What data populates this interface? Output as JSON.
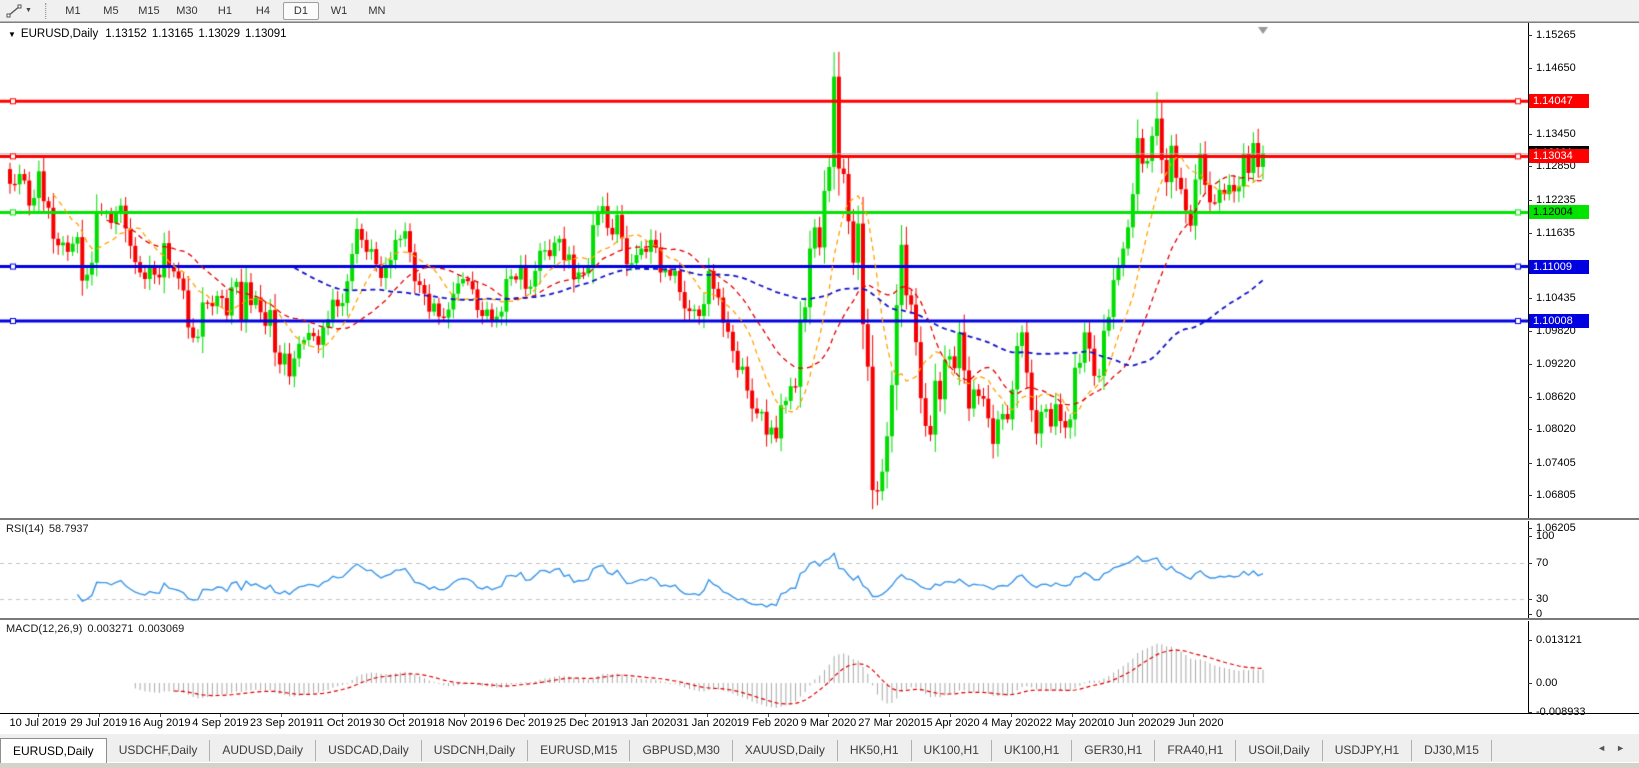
{
  "toolbar": {
    "timeframes": [
      "M1",
      "M5",
      "M15",
      "M30",
      "H1",
      "H4",
      "D1",
      "W1",
      "MN"
    ],
    "active_timeframe": "D1"
  },
  "icons": {
    "collapse": "▼",
    "tab_left": "◄",
    "tab_right": "►"
  },
  "chart_header": {
    "symbol": "EURUSD,Daily",
    "open": "1.13152",
    "high": "1.13165",
    "low": "1.13029",
    "close": "1.13091"
  },
  "price_axis": {
    "ticks": [
      "1.15265",
      "1.14650",
      "1.13450",
      "1.12850",
      "1.12235",
      "1.11635",
      "1.10435",
      "1.09820",
      "1.09220",
      "1.08620",
      "1.08020",
      "1.07405",
      "1.06805",
      "1.06205"
    ]
  },
  "rsi": {
    "label": "RSI(14)",
    "value": "58.7937",
    "period": 14,
    "color": "#3b96e8",
    "axis": [
      {
        "text": "100",
        "value": 100
      },
      {
        "text": "70",
        "value": 70
      },
      {
        "text": "30",
        "value": 30
      },
      {
        "text": "0",
        "value": 0
      }
    ],
    "levels": [
      70,
      30
    ]
  },
  "macd": {
    "label": "MACD(12,26,9)",
    "value_main": "0.003271",
    "value_signal": "0.003069",
    "fast": 12,
    "slow": 26,
    "signal": 9,
    "histogram_color": "#a9a9a9",
    "signal_color": "#e00000",
    "axis": [
      {
        "text": "0.013121",
        "value": 0.013121
      },
      {
        "text": "0.00",
        "value": 0
      },
      {
        "text": "-0.008933",
        "value": -0.008933
      }
    ]
  },
  "time_axis": {
    "labels": [
      "10 Jul 2019",
      "29 Jul 2019",
      "16 Aug 2019",
      "4 Sep 2019",
      "23 Sep 2019",
      "11 Oct 2019",
      "30 Oct 2019",
      "18 Nov 2019",
      "6 Dec 2019",
      "25 Dec 2019",
      "13 Jan 2020",
      "31 Jan 2020",
      "19 Feb 2020",
      "9 Mar 2020",
      "27 Mar 2020",
      "15 Apr 2020",
      "4 May 2020",
      "22 May 2020",
      "10 Jun 2020",
      "29 Jun 2020"
    ]
  },
  "bottom_tabs": {
    "active_index": 0,
    "tabs": [
      "EURUSD,Daily",
      "USDCHF,Daily",
      "AUDUSD,Daily",
      "USDCAD,Daily",
      "USDCNH,Daily",
      "EURUSD,M15",
      "GBPUSD,M30",
      "XAUUSD,Daily",
      "HK50,H1",
      "UK100,H1",
      "UK100,H1",
      "GER30,H1",
      "FRA40,H1",
      "USOil,Daily",
      "USDJPY,H1",
      "DJ30,M15"
    ]
  },
  "chart_data": {
    "type": "candlestick",
    "symbol": "EURUSD",
    "timeframe": "Daily",
    "up_color": "#00dd00",
    "down_color": "#f60000",
    "first_open": 1.128,
    "closes": [
      1.1253,
      1.1252,
      1.1271,
      1.1259,
      1.1213,
      1.1227,
      1.1276,
      1.1221,
      1.1209,
      1.1152,
      1.114,
      1.1145,
      1.1128,
      1.1143,
      1.1155,
      1.1075,
      1.1086,
      1.1108,
      1.1203,
      1.12,
      1.12,
      1.1181,
      1.1199,
      1.1213,
      1.1171,
      1.1139,
      1.1109,
      1.109,
      1.1078,
      1.1099,
      1.1086,
      1.1081,
      1.1144,
      1.1101,
      1.1092,
      1.1079,
      1.1057,
      1.0989,
      1.097,
      1.0972,
      1.1035,
      1.1034,
      1.1028,
      1.1047,
      1.1043,
      1.1011,
      1.1063,
      1.1073,
      1.1003,
      1.1072,
      1.103,
      1.1044,
      1.1017,
      1.0992,
      1.1021,
      1.0943,
      1.0921,
      1.0941,
      1.0899,
      1.0932,
      1.0959,
      1.0966,
      1.0979,
      1.0973,
      1.0957,
      1.0989,
      1.1004,
      1.104,
      1.1028,
      1.1034,
      1.1074,
      1.1124,
      1.117,
      1.115,
      1.1128,
      1.1133,
      1.1105,
      1.108,
      1.1099,
      1.1113,
      1.115,
      1.1152,
      1.1166,
      1.1127,
      1.1074,
      1.1067,
      1.1051,
      1.1018,
      1.1033,
      1.1009,
      1.1007,
      1.1022,
      1.1051,
      1.107,
      1.1078,
      1.1074,
      1.1059,
      1.1021,
      1.101,
      1.1022,
      1.1,
      1.1009,
      1.1018,
      1.1078,
      1.1083,
      1.1077,
      1.1104,
      1.106,
      1.1064,
      1.1093,
      1.113,
      1.1131,
      1.112,
      1.1145,
      1.1152,
      1.1113,
      1.1123,
      1.1078,
      1.109,
      1.1088,
      1.1098,
      1.1177,
      1.1199,
      1.1212,
      1.1172,
      1.116,
      1.1196,
      1.1153,
      1.1105,
      1.1107,
      1.1122,
      1.1134,
      1.1128,
      1.115,
      1.1136,
      1.109,
      1.1095,
      1.1084,
      1.1093,
      1.1054,
      1.1024,
      1.1019,
      1.1022,
      1.101,
      1.1032,
      1.1093,
      1.106,
      1.1044,
      1.0998,
      1.0981,
      1.0946,
      1.0911,
      1.0917,
      1.0873,
      1.084,
      1.0831,
      1.0834,
      1.0792,
      1.0805,
      1.0785,
      1.0846,
      1.0854,
      1.0881,
      1.088,
      1.0999,
      1.1026,
      1.1134,
      1.1173,
      1.1136,
      1.124,
      1.1284,
      1.145,
      1.1281,
      1.1271,
      1.1184,
      1.1108,
      1.118,
      1.0995,
      1.0917,
      1.069,
      1.0688,
      1.0724,
      1.0789,
      1.0883,
      1.103,
      1.1141,
      1.1048,
      1.1031,
      1.0962,
      1.0859,
      1.0808,
      1.0792,
      1.0891,
      1.0857,
      1.093,
      1.0936,
      1.0914,
      1.098,
      1.091,
      1.084,
      1.0875,
      1.0863,
      1.0858,
      1.0822,
      1.0775,
      1.082,
      1.083,
      1.082,
      1.0875,
      1.0955,
      1.098,
      1.0906,
      1.0837,
      1.0794,
      1.0834,
      1.0839,
      1.0807,
      1.0848,
      1.0817,
      1.0805,
      1.082,
      1.0915,
      1.0924,
      1.098,
      1.095,
      1.09,
      1.09,
      1.0983,
      1.1008,
      1.1076,
      1.1101,
      1.1134,
      1.1173,
      1.1234,
      1.1337,
      1.129,
      1.1295,
      1.1341,
      1.1373,
      1.1297,
      1.1256,
      1.1323,
      1.1264,
      1.1243,
      1.1204,
      1.1176,
      1.1261,
      1.1308,
      1.1251,
      1.1219,
      1.1218,
      1.1242,
      1.1234,
      1.1251,
      1.1239,
      1.1248,
      1.1308,
      1.1273,
      1.1328,
      1.1284,
      1.1309
    ],
    "wick_overrides": {
      "59": {
        "l": 1.0879
      },
      "159": {
        "l": 1.0778
      },
      "171": {
        "h": 1.1495
      },
      "179": {
        "l": 1.0655
      },
      "180": {
        "l": 1.0662
      },
      "238": {
        "h": 1.1422
      }
    },
    "moving_averages": [
      {
        "period": 10,
        "color": "#ffa200",
        "width": 1.3
      },
      {
        "period": 21,
        "color": "#e10000",
        "width": 1.3
      },
      {
        "period": 60,
        "color": "#1414c8",
        "width": 1.8
      }
    ],
    "hlines": [
      {
        "price": 1.14047,
        "label": "1.14047",
        "color": "#ff0000",
        "text": "#ffffff"
      },
      {
        "price": 1.13034,
        "label": "1.13034",
        "color": "#ff0000",
        "text": "#ffffff"
      },
      {
        "price": 1.12004,
        "label": "1.12004",
        "color": "#00e400",
        "text": "#000000"
      },
      {
        "price": 1.11009,
        "label": "1.11009",
        "color": "#0000e0",
        "text": "#ffffff"
      },
      {
        "price": 1.10008,
        "label": "1.10008",
        "color": "#0000e0",
        "text": "#ffffff"
      }
    ],
    "price_marker": {
      "price": 1.13091,
      "label": "1.13091",
      "line_color": "#b0b0b0",
      "badge_color": "#000000",
      "text": "#ffffff"
    }
  }
}
